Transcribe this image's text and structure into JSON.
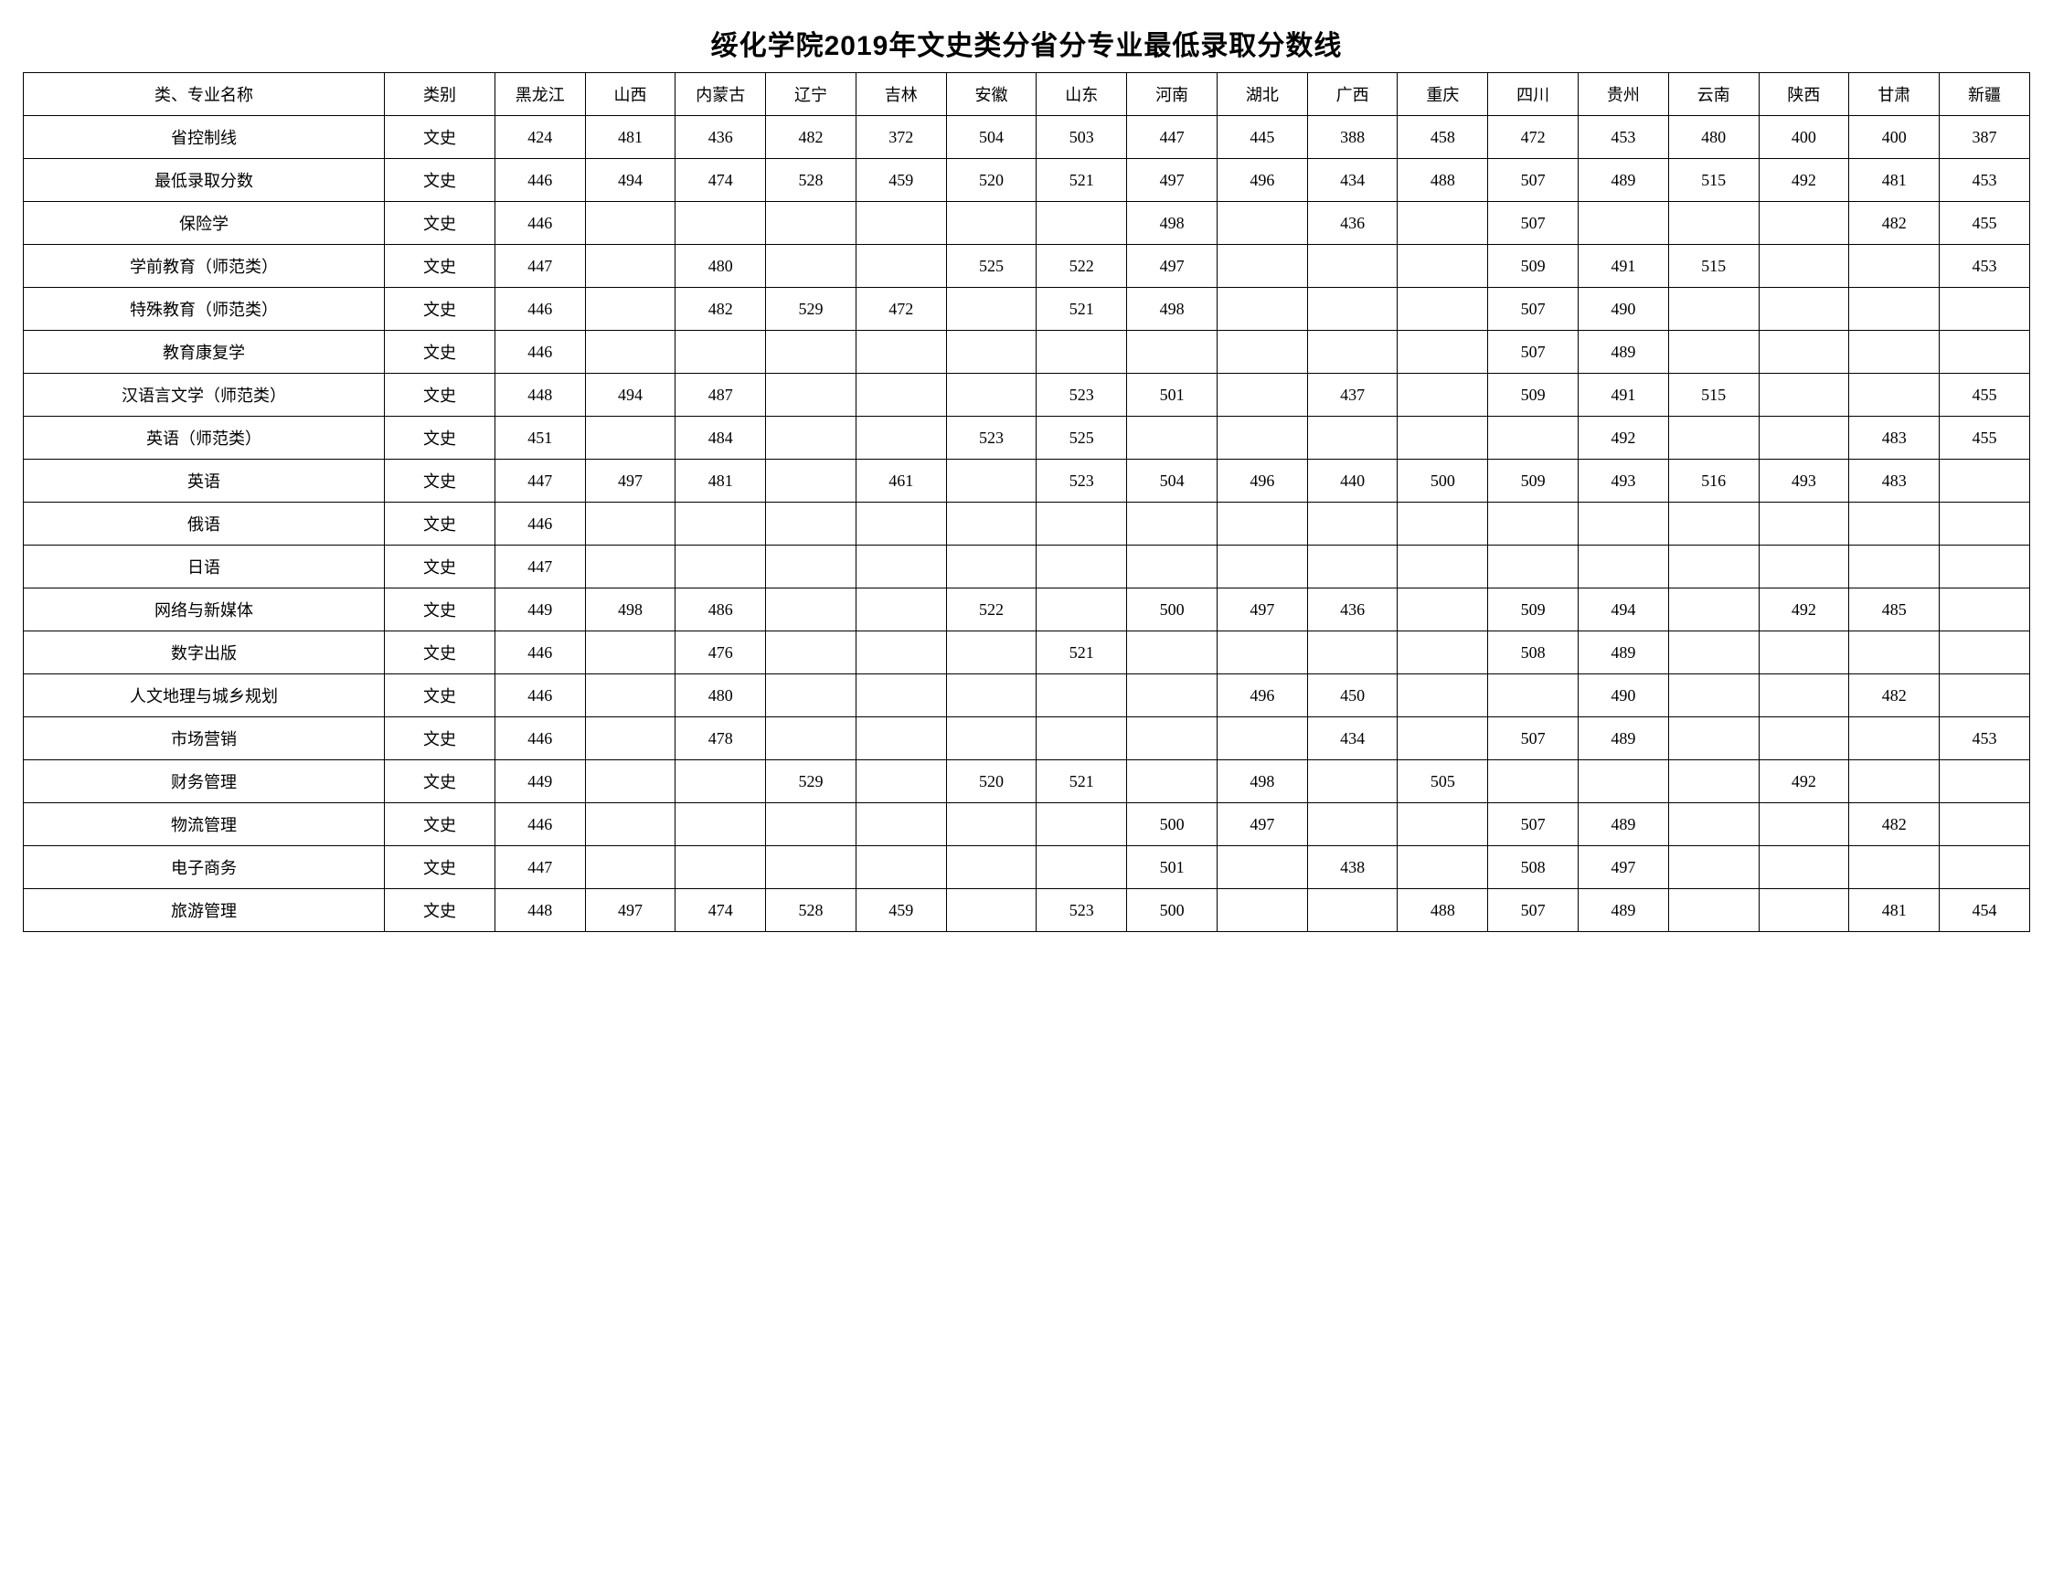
{
  "title": "绥化学院2019年文史类分省分专业最低录取分数线",
  "columns": [
    "类、专业名称",
    "类别",
    "黑龙江",
    "山西",
    "内蒙古",
    "辽宁",
    "吉林",
    "安徽",
    "山东",
    "河南",
    "湖北",
    "广西",
    "重庆",
    "四川",
    "贵州",
    "云南",
    "陕西",
    "甘肃",
    "新疆"
  ],
  "rows": [
    [
      "省控制线",
      "文史",
      "424",
      "481",
      "436",
      "482",
      "372",
      "504",
      "503",
      "447",
      "445",
      "388",
      "458",
      "472",
      "453",
      "480",
      "400",
      "400",
      "387"
    ],
    [
      "最低录取分数",
      "文史",
      "446",
      "494",
      "474",
      "528",
      "459",
      "520",
      "521",
      "497",
      "496",
      "434",
      "488",
      "507",
      "489",
      "515",
      "492",
      "481",
      "453"
    ],
    [
      "保险学",
      "文史",
      "446",
      "",
      "",
      "",
      "",
      "",
      "",
      "498",
      "",
      "436",
      "",
      "507",
      "",
      "",
      "",
      "482",
      "455"
    ],
    [
      "学前教育（师范类）",
      "文史",
      "447",
      "",
      "480",
      "",
      "",
      "525",
      "522",
      "497",
      "",
      "",
      "",
      "509",
      "491",
      "515",
      "",
      "",
      "453"
    ],
    [
      "特殊教育（师范类）",
      "文史",
      "446",
      "",
      "482",
      "529",
      "472",
      "",
      "521",
      "498",
      "",
      "",
      "",
      "507",
      "490",
      "",
      "",
      "",
      ""
    ],
    [
      "教育康复学",
      "文史",
      "446",
      "",
      "",
      "",
      "",
      "",
      "",
      "",
      "",
      "",
      "",
      "507",
      "489",
      "",
      "",
      "",
      ""
    ],
    [
      "汉语言文学（师范类）",
      "文史",
      "448",
      "494",
      "487",
      "",
      "",
      "",
      "523",
      "501",
      "",
      "437",
      "",
      "509",
      "491",
      "515",
      "",
      "",
      "455"
    ],
    [
      "英语（师范类）",
      "文史",
      "451",
      "",
      "484",
      "",
      "",
      "523",
      "525",
      "",
      "",
      "",
      "",
      "",
      "492",
      "",
      "",
      "483",
      "455"
    ],
    [
      "英语",
      "文史",
      "447",
      "497",
      "481",
      "",
      "461",
      "",
      "523",
      "504",
      "496",
      "440",
      "500",
      "509",
      "493",
      "516",
      "493",
      "483",
      ""
    ],
    [
      "俄语",
      "文史",
      "446",
      "",
      "",
      "",
      "",
      "",
      "",
      "",
      "",
      "",
      "",
      "",
      "",
      "",
      "",
      "",
      ""
    ],
    [
      "日语",
      "文史",
      "447",
      "",
      "",
      "",
      "",
      "",
      "",
      "",
      "",
      "",
      "",
      "",
      "",
      "",
      "",
      "",
      ""
    ],
    [
      "网络与新媒体",
      "文史",
      "449",
      "498",
      "486",
      "",
      "",
      "522",
      "",
      "500",
      "497",
      "436",
      "",
      "509",
      "494",
      "",
      "492",
      "485",
      ""
    ],
    [
      "数字出版",
      "文史",
      "446",
      "",
      "476",
      "",
      "",
      "",
      "521",
      "",
      "",
      "",
      "",
      "508",
      "489",
      "",
      "",
      "",
      ""
    ],
    [
      "人文地理与城乡规划",
      "文史",
      "446",
      "",
      "480",
      "",
      "",
      "",
      "",
      "",
      "496",
      "450",
      "",
      "",
      "490",
      "",
      "",
      "482",
      ""
    ],
    [
      "市场营销",
      "文史",
      "446",
      "",
      "478",
      "",
      "",
      "",
      "",
      "",
      "",
      "434",
      "",
      "507",
      "489",
      "",
      "",
      "",
      "453"
    ],
    [
      "财务管理",
      "文史",
      "449",
      "",
      "",
      "529",
      "",
      "520",
      "521",
      "",
      "498",
      "",
      "505",
      "",
      "",
      "",
      "492",
      "",
      ""
    ],
    [
      "物流管理",
      "文史",
      "446",
      "",
      "",
      "",
      "",
      "",
      "",
      "500",
      "497",
      "",
      "",
      "507",
      "489",
      "",
      "",
      "482",
      ""
    ],
    [
      "电子商务",
      "文史",
      "447",
      "",
      "",
      "",
      "",
      "",
      "",
      "501",
      "",
      "438",
      "",
      "508",
      "497",
      "",
      "",
      "",
      ""
    ],
    [
      "旅游管理",
      "文史",
      "448",
      "497",
      "474",
      "528",
      "459",
      "",
      "523",
      "500",
      "",
      "",
      "488",
      "507",
      "489",
      "",
      "",
      "481",
      "454"
    ]
  ]
}
